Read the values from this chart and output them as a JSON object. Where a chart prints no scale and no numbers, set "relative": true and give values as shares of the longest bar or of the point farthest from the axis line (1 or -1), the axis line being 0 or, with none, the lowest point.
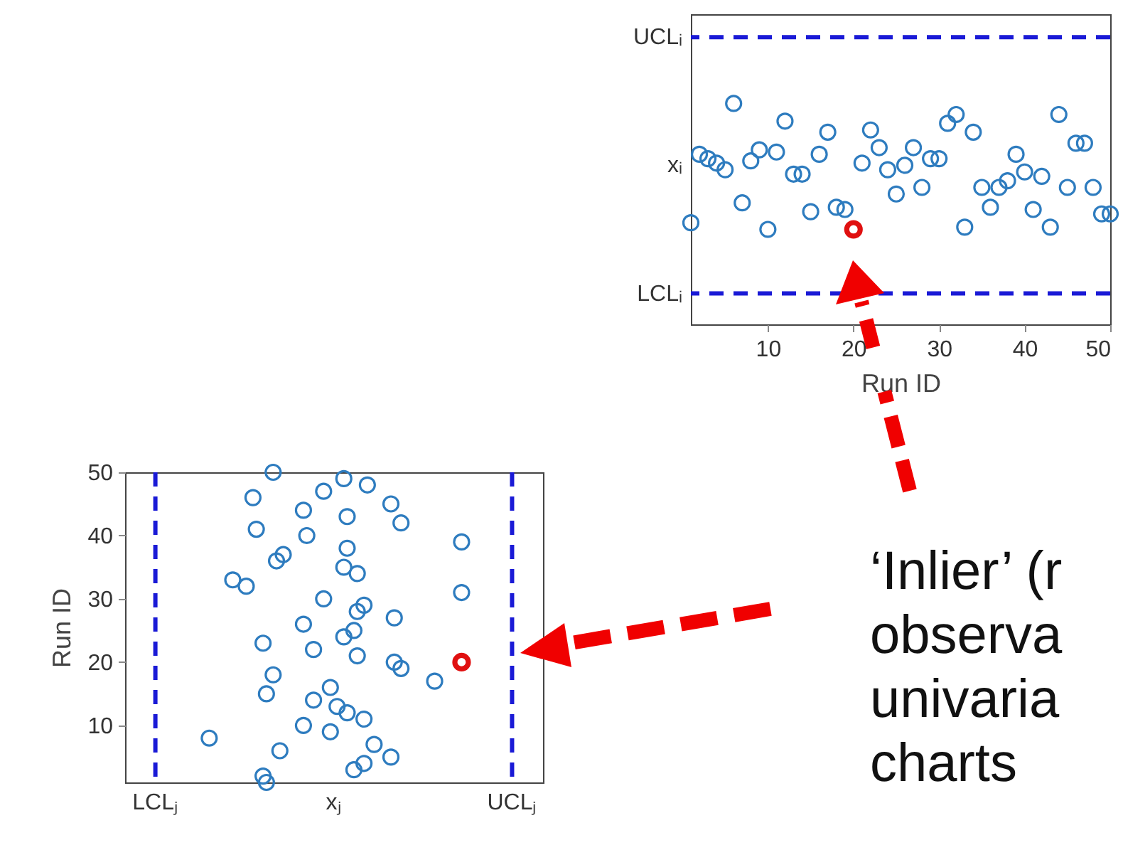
{
  "chart_data": [
    {
      "type": "scatter",
      "relative": true,
      "xlabel": "Run ID",
      "marker": "circle",
      "grid": false,
      "xlim": [
        1,
        50
      ],
      "xticks": [
        10,
        20,
        30,
        40,
        50
      ],
      "ref_lines": [
        {
          "axis": "y",
          "value": 1.3,
          "label": "UCLᵢ",
          "color": "#1a1ad6",
          "line_style": "dashed"
        },
        {
          "axis": "y",
          "value": 0.14,
          "label": "LCLᵢ",
          "color": "#1a1ad6",
          "line_style": "dashed"
        }
      ],
      "annotations": [
        "xᵢ"
      ],
      "x": [
        1,
        2,
        3,
        4,
        5,
        6,
        7,
        8,
        9,
        10,
        11,
        12,
        13,
        14,
        15,
        16,
        17,
        18,
        19,
        20,
        21,
        22,
        23,
        24,
        25,
        26,
        27,
        28,
        29,
        30,
        31,
        32,
        33,
        34,
        35,
        36,
        37,
        38,
        39,
        40,
        41,
        42,
        43,
        44,
        45,
        46,
        47,
        48,
        49,
        50
      ],
      "series": [
        {
          "color": "#2e7cbf",
          "values": [
            0.46,
            0.77,
            0.75,
            0.73,
            0.7,
            1.0,
            0.55,
            0.74,
            0.79,
            0.43,
            0.78,
            0.92,
            0.68,
            0.68,
            0.51,
            0.77,
            0.87,
            0.53,
            0.52,
            null,
            0.73,
            0.88,
            0.8,
            0.7,
            0.59,
            0.72,
            0.8,
            0.62,
            0.75,
            0.75,
            0.91,
            0.95,
            0.44,
            0.87,
            0.62,
            0.53,
            0.62,
            0.65,
            0.77,
            0.69,
            0.52,
            0.67,
            0.44,
            0.95,
            0.62,
            0.82,
            0.82,
            0.62,
            0.5,
            0.5
          ]
        },
        {
          "color": "#e01010",
          "x": [
            20
          ],
          "values": [
            0.43
          ]
        }
      ]
    },
    {
      "type": "scatter",
      "relative": true,
      "orientation": "horizontal",
      "ylabel": "Run ID",
      "marker": "circle",
      "grid": false,
      "categories": [
        "50",
        null,
        null,
        null,
        null,
        null,
        null,
        null,
        null,
        null,
        "40",
        null,
        null,
        null,
        null,
        null,
        null,
        null,
        null,
        null,
        "30",
        null,
        null,
        null,
        null,
        null,
        null,
        null,
        null,
        null,
        "20",
        null,
        null,
        null,
        null,
        null,
        null,
        null,
        null,
        null,
        "10",
        null,
        null,
        null,
        null,
        null,
        null,
        null,
        null,
        null
      ],
      "ref_lines": [
        {
          "axis": "x",
          "value": 0.09,
          "label": "LCLⱼ",
          "color": "#1a1ad6",
          "line_style": "dashed"
        },
        {
          "axis": "x",
          "value": 1.15,
          "label": "UCLⱼ",
          "color": "#1a1ad6",
          "line_style": "dashed"
        }
      ],
      "annotations": [
        "xⱼ",
        "‘Inlier’ (r\nobserva\nunivaria\ncharts"
      ],
      "series": [
        {
          "color": "#2e7cbf",
          "values": [
            0.44,
            0.65,
            0.72,
            0.59,
            0.38,
            0.79,
            0.53,
            0.66,
            0.82,
            0.39,
            0.54,
            1.0,
            0.66,
            0.47,
            0.45,
            0.65,
            0.69,
            0.32,
            0.36,
            1.0,
            0.59,
            0.71,
            0.69,
            0.8,
            0.53,
            0.68,
            0.65,
            0.41,
            0.56,
            0.69,
            0.8,
            0.82,
            0.44,
            0.92,
            0.61,
            0.42,
            0.56,
            0.63,
            0.66,
            0.71,
            0.53,
            0.61,
            0.25,
            0.74,
            0.46,
            0.79,
            0.71,
            0.68,
            0.41,
            0.42
          ]
        },
        {
          "color": "#e01010",
          "values": [
            null,
            null,
            null,
            null,
            null,
            null,
            null,
            null,
            null,
            null,
            null,
            null,
            null,
            null,
            null,
            null,
            null,
            null,
            null,
            null,
            null,
            null,
            null,
            null,
            null,
            null,
            null,
            null,
            null,
            null,
            1.0,
            null,
            null,
            null,
            null,
            null,
            null,
            null,
            null,
            null,
            null,
            null,
            null,
            null,
            null,
            null,
            null,
            null,
            null,
            null
          ]
        }
      ]
    }
  ]
}
